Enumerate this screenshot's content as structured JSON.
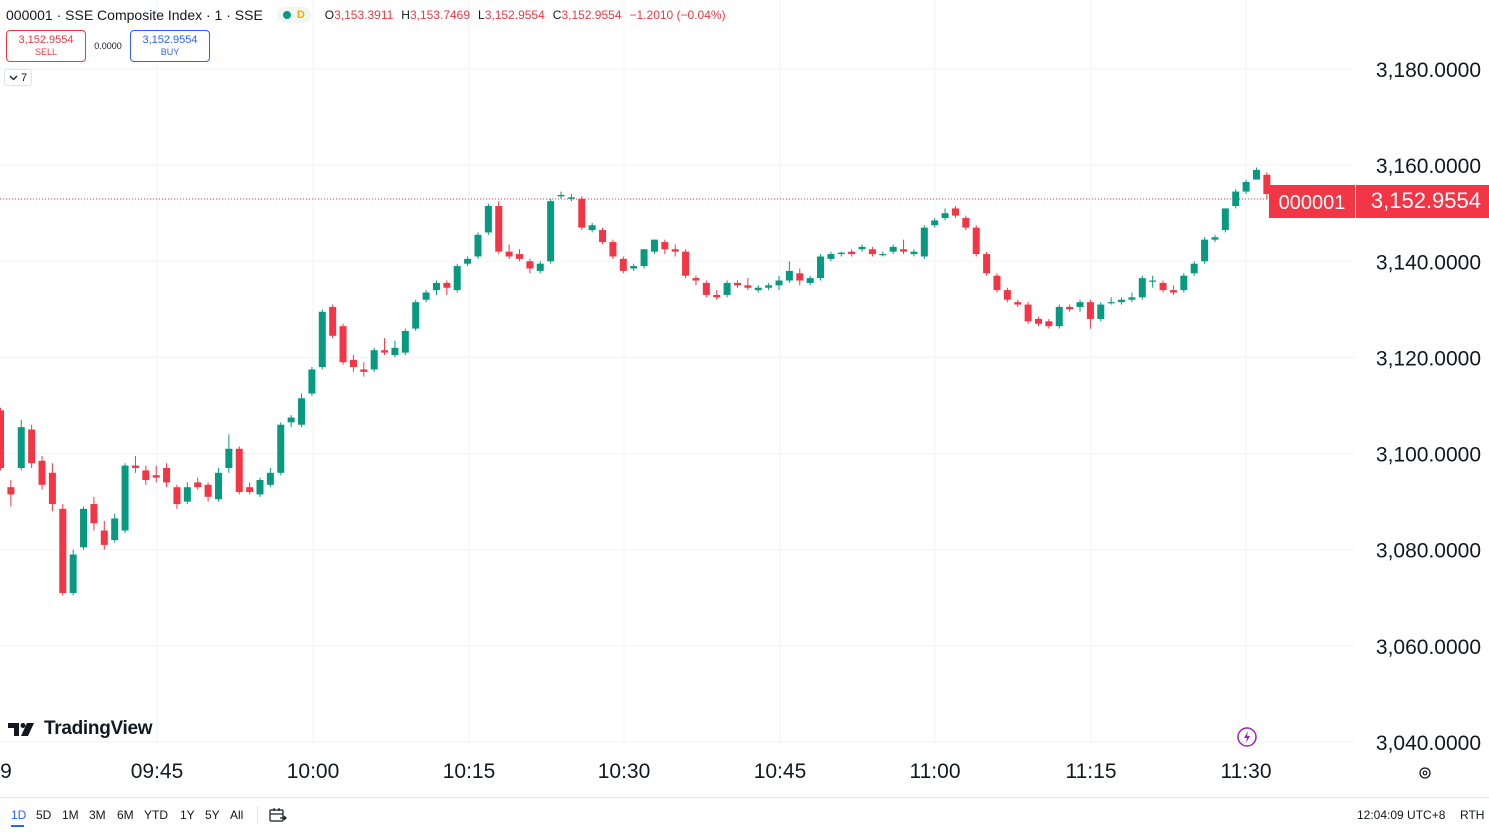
{
  "header": {
    "symbol_line": "000001 · SSE Composite Index · 1 · SSE",
    "status_letter": "D",
    "ohlc": {
      "open_label": "O",
      "open": "3,153.3911",
      "high_label": "H",
      "high": "3,153.7469",
      "low_label": "L",
      "low": "3,152.9554",
      "close_label": "C",
      "close": "3,152.9554",
      "change": "−1.2010 (−0.04%)"
    }
  },
  "trade": {
    "sell_price": "3,152.9554",
    "sell_label": "SELL",
    "spread": "0.0000",
    "buy_price": "3,152.9554",
    "buy_label": "BUY"
  },
  "collapse_count": "7",
  "logo_text": "TradingView",
  "price_tag": {
    "symbol": "000001",
    "price": "3,152.9554"
  },
  "bottom": {
    "ranges": [
      "1D",
      "5D",
      "1M",
      "3M",
      "6M",
      "YTD",
      "1Y",
      "5Y",
      "All"
    ],
    "active_range": "1D",
    "clock": "12:04:09 UTC+8",
    "session": "RTH"
  },
  "colors": {
    "up": "#089981",
    "down": "#f23645",
    "grid": "#f0f3fa",
    "accent": "#2962ff"
  },
  "chart_data": {
    "type": "candlestick",
    "y_ticks": [
      3040,
      3060,
      3080,
      3100,
      3120,
      3140,
      3160,
      3180
    ],
    "y_tick_labels": [
      "3,040.0000",
      "3,060.0000",
      "3,080.0000",
      "3,100.0000",
      "3,120.0000",
      "3,140.0000",
      "3,160.0000",
      "3,180.0000"
    ],
    "x_ticks": [
      "09:45",
      "10:00",
      "10:15",
      "10:30",
      "10:45",
      "11:00",
      "11:15",
      "11:30"
    ],
    "x_partial_label": "9",
    "last_price": 3152.9554,
    "candles": [
      {
        "o": 3109.0,
        "h": 3109.5,
        "l": 3096.5,
        "c": 3097.0
      },
      {
        "o": 3093.0,
        "h": 3094.5,
        "l": 3089.0,
        "c": 3091.5
      },
      {
        "o": 3097.0,
        "h": 3107.0,
        "l": 3096.5,
        "c": 3105.5
      },
      {
        "o": 3105.0,
        "h": 3106.0,
        "l": 3097.0,
        "c": 3098.0
      },
      {
        "o": 3098.5,
        "h": 3099.5,
        "l": 3092.5,
        "c": 3093.5
      },
      {
        "o": 3096.0,
        "h": 3098.0,
        "l": 3088.0,
        "c": 3089.5
      },
      {
        "o": 3088.5,
        "h": 3089.5,
        "l": 3070.5,
        "c": 3071.0
      },
      {
        "o": 3071.0,
        "h": 3080.0,
        "l": 3070.5,
        "c": 3079.0
      },
      {
        "o": 3080.5,
        "h": 3089.0,
        "l": 3080.0,
        "c": 3088.5
      },
      {
        "o": 3089.5,
        "h": 3091.0,
        "l": 3084.0,
        "c": 3085.5
      },
      {
        "o": 3084.0,
        "h": 3086.0,
        "l": 3080.0,
        "c": 3081.0
      },
      {
        "o": 3082.0,
        "h": 3087.5,
        "l": 3081.5,
        "c": 3086.5
      },
      {
        "o": 3084.0,
        "h": 3098.0,
        "l": 3083.5,
        "c": 3097.5
      },
      {
        "o": 3097.5,
        "h": 3099.5,
        "l": 3096.0,
        "c": 3097.0
      },
      {
        "o": 3096.5,
        "h": 3097.5,
        "l": 3093.5,
        "c": 3094.5
      },
      {
        "o": 3095.5,
        "h": 3097.5,
        "l": 3094.0,
        "c": 3095.0
      },
      {
        "o": 3097.0,
        "h": 3098.0,
        "l": 3093.0,
        "c": 3094.0
      },
      {
        "o": 3093.0,
        "h": 3093.5,
        "l": 3088.5,
        "c": 3089.5
      },
      {
        "o": 3090.0,
        "h": 3094.0,
        "l": 3089.5,
        "c": 3093.0
      },
      {
        "o": 3094.0,
        "h": 3095.0,
        "l": 3092.5,
        "c": 3093.0
      },
      {
        "o": 3093.5,
        "h": 3094.0,
        "l": 3090.0,
        "c": 3091.0
      },
      {
        "o": 3090.5,
        "h": 3097.0,
        "l": 3090.0,
        "c": 3096.0
      },
      {
        "o": 3097.0,
        "h": 3104.0,
        "l": 3096.0,
        "c": 3101.0
      },
      {
        "o": 3101.0,
        "h": 3101.5,
        "l": 3091.5,
        "c": 3092.0
      },
      {
        "o": 3093.0,
        "h": 3094.0,
        "l": 3091.5,
        "c": 3092.0
      },
      {
        "o": 3091.5,
        "h": 3095.0,
        "l": 3091.0,
        "c": 3094.5
      },
      {
        "o": 3093.5,
        "h": 3097.0,
        "l": 3093.0,
        "c": 3096.0
      },
      {
        "o": 3096.0,
        "h": 3106.5,
        "l": 3095.5,
        "c": 3106.0
      },
      {
        "o": 3106.5,
        "h": 3108.0,
        "l": 3105.5,
        "c": 3107.5
      },
      {
        "o": 3106.0,
        "h": 3112.5,
        "l": 3105.5,
        "c": 3111.5
      },
      {
        "o": 3112.5,
        "h": 3118.0,
        "l": 3112.0,
        "c": 3117.5
      },
      {
        "o": 3118.0,
        "h": 3130.0,
        "l": 3117.5,
        "c": 3129.5
      },
      {
        "o": 3130.5,
        "h": 3131.0,
        "l": 3124.0,
        "c": 3124.5
      },
      {
        "o": 3126.5,
        "h": 3127.0,
        "l": 3118.5,
        "c": 3119.0
      },
      {
        "o": 3119.5,
        "h": 3120.5,
        "l": 3117.0,
        "c": 3118.0
      },
      {
        "o": 3117.5,
        "h": 3119.0,
        "l": 3116.0,
        "c": 3117.0
      },
      {
        "o": 3117.5,
        "h": 3122.0,
        "l": 3117.0,
        "c": 3121.5
      },
      {
        "o": 3121.5,
        "h": 3124.0,
        "l": 3120.5,
        "c": 3121.0
      },
      {
        "o": 3120.5,
        "h": 3123.5,
        "l": 3120.0,
        "c": 3122.0
      },
      {
        "o": 3121.0,
        "h": 3126.0,
        "l": 3120.5,
        "c": 3125.5
      },
      {
        "o": 3126.0,
        "h": 3132.0,
        "l": 3125.5,
        "c": 3131.5
      },
      {
        "o": 3132.0,
        "h": 3134.0,
        "l": 3131.5,
        "c": 3133.5
      },
      {
        "o": 3134.0,
        "h": 3136.0,
        "l": 3133.0,
        "c": 3135.5
      },
      {
        "o": 3135.5,
        "h": 3136.0,
        "l": 3133.0,
        "c": 3134.5
      },
      {
        "o": 3134.0,
        "h": 3139.5,
        "l": 3133.5,
        "c": 3139.0
      },
      {
        "o": 3139.5,
        "h": 3141.0,
        "l": 3139.0,
        "c": 3140.5
      },
      {
        "o": 3141.0,
        "h": 3146.0,
        "l": 3140.5,
        "c": 3145.5
      },
      {
        "o": 3146.0,
        "h": 3152.0,
        "l": 3145.5,
        "c": 3151.5
      },
      {
        "o": 3151.5,
        "h": 3152.5,
        "l": 3141.5,
        "c": 3142.0
      },
      {
        "o": 3142.0,
        "h": 3143.5,
        "l": 3140.5,
        "c": 3141.0
      },
      {
        "o": 3141.5,
        "h": 3142.5,
        "l": 3140.0,
        "c": 3140.5
      },
      {
        "o": 3140.0,
        "h": 3140.5,
        "l": 3137.5,
        "c": 3138.5
      },
      {
        "o": 3138.0,
        "h": 3140.0,
        "l": 3137.5,
        "c": 3139.5
      },
      {
        "o": 3140.0,
        "h": 3153.0,
        "l": 3139.5,
        "c": 3152.5
      },
      {
        "o": 3153.5,
        "h": 3154.5,
        "l": 3153.0,
        "c": 3153.8
      },
      {
        "o": 3153.0,
        "h": 3154.0,
        "l": 3152.5,
        "c": 3153.3
      },
      {
        "o": 3153.0,
        "h": 3153.5,
        "l": 3146.5,
        "c": 3147.0
      },
      {
        "o": 3146.5,
        "h": 3148.0,
        "l": 3146.0,
        "c": 3147.5
      },
      {
        "o": 3146.5,
        "h": 3147.0,
        "l": 3143.5,
        "c": 3144.0
      },
      {
        "o": 3144.0,
        "h": 3144.5,
        "l": 3140.5,
        "c": 3141.0
      },
      {
        "o": 3140.5,
        "h": 3141.0,
        "l": 3137.5,
        "c": 3138.0
      },
      {
        "o": 3138.5,
        "h": 3139.5,
        "l": 3138.0,
        "c": 3139.0
      },
      {
        "o": 3139.0,
        "h": 3142.5,
        "l": 3138.5,
        "c": 3142.5
      },
      {
        "o": 3142.0,
        "h": 3144.5,
        "l": 3141.5,
        "c": 3144.5
      },
      {
        "o": 3144.0,
        "h": 3144.5,
        "l": 3141.5,
        "c": 3142.5
      },
      {
        "o": 3142.5,
        "h": 3143.5,
        "l": 3141.0,
        "c": 3142.0
      },
      {
        "o": 3142.0,
        "h": 3142.5,
        "l": 3136.5,
        "c": 3137.0
      },
      {
        "o": 3136.5,
        "h": 3137.0,
        "l": 3135.0,
        "c": 3136.0
      },
      {
        "o": 3135.5,
        "h": 3136.0,
        "l": 3132.5,
        "c": 3133.0
      },
      {
        "o": 3133.0,
        "h": 3134.0,
        "l": 3132.0,
        "c": 3132.5
      },
      {
        "o": 3133.0,
        "h": 3136.0,
        "l": 3132.5,
        "c": 3135.5
      },
      {
        "o": 3135.5,
        "h": 3136.0,
        "l": 3134.5,
        "c": 3135.0
      },
      {
        "o": 3135.0,
        "h": 3136.5,
        "l": 3134.0,
        "c": 3134.5
      },
      {
        "o": 3134.0,
        "h": 3135.0,
        "l": 3133.5,
        "c": 3134.5
      },
      {
        "o": 3134.5,
        "h": 3135.5,
        "l": 3134.0,
        "c": 3135.0
      },
      {
        "o": 3135.0,
        "h": 3137.0,
        "l": 3134.0,
        "c": 3136.0
      },
      {
        "o": 3136.0,
        "h": 3140.0,
        "l": 3135.5,
        "c": 3138.0
      },
      {
        "o": 3137.5,
        "h": 3138.5,
        "l": 3135.0,
        "c": 3136.0
      },
      {
        "o": 3135.5,
        "h": 3137.0,
        "l": 3135.0,
        "c": 3136.5
      },
      {
        "o": 3136.5,
        "h": 3141.5,
        "l": 3136.0,
        "c": 3141.0
      },
      {
        "o": 3140.5,
        "h": 3142.0,
        "l": 3140.0,
        "c": 3141.5
      },
      {
        "o": 3141.5,
        "h": 3142.0,
        "l": 3141.0,
        "c": 3141.8
      },
      {
        "o": 3142.0,
        "h": 3142.5,
        "l": 3141.0,
        "c": 3141.5
      },
      {
        "o": 3142.5,
        "h": 3143.5,
        "l": 3142.0,
        "c": 3143.0
      },
      {
        "o": 3142.5,
        "h": 3143.0,
        "l": 3141.0,
        "c": 3141.5
      },
      {
        "o": 3141.5,
        "h": 3142.0,
        "l": 3141.0,
        "c": 3141.5
      },
      {
        "o": 3142.0,
        "h": 3143.5,
        "l": 3141.5,
        "c": 3143.0
      },
      {
        "o": 3142.5,
        "h": 3144.5,
        "l": 3141.5,
        "c": 3142.0
      },
      {
        "o": 3141.5,
        "h": 3142.5,
        "l": 3141.0,
        "c": 3142.0
      },
      {
        "o": 3141.0,
        "h": 3147.5,
        "l": 3140.5,
        "c": 3147.0
      },
      {
        "o": 3147.5,
        "h": 3149.0,
        "l": 3147.0,
        "c": 3148.5
      },
      {
        "o": 3149.0,
        "h": 3151.0,
        "l": 3148.5,
        "c": 3150.0
      },
      {
        "o": 3151.0,
        "h": 3151.5,
        "l": 3149.0,
        "c": 3149.5
      },
      {
        "o": 3149.0,
        "h": 3149.5,
        "l": 3146.5,
        "c": 3147.0
      },
      {
        "o": 3147.0,
        "h": 3147.5,
        "l": 3141.0,
        "c": 3141.5
      },
      {
        "o": 3141.5,
        "h": 3142.0,
        "l": 3137.0,
        "c": 3137.5
      },
      {
        "o": 3137.0,
        "h": 3137.5,
        "l": 3133.5,
        "c": 3134.0
      },
      {
        "o": 3134.0,
        "h": 3134.5,
        "l": 3131.5,
        "c": 3132.0
      },
      {
        "o": 3131.5,
        "h": 3132.0,
        "l": 3130.5,
        "c": 3131.0
      },
      {
        "o": 3131.0,
        "h": 3131.5,
        "l": 3127.0,
        "c": 3127.5
      },
      {
        "o": 3128.0,
        "h": 3128.5,
        "l": 3126.5,
        "c": 3127.0
      },
      {
        "o": 3127.5,
        "h": 3128.0,
        "l": 3126.0,
        "c": 3126.5
      },
      {
        "o": 3126.5,
        "h": 3131.0,
        "l": 3126.0,
        "c": 3130.5
      },
      {
        "o": 3130.5,
        "h": 3131.0,
        "l": 3129.5,
        "c": 3130.0
      },
      {
        "o": 3130.5,
        "h": 3132.0,
        "l": 3129.5,
        "c": 3131.5
      },
      {
        "o": 3131.5,
        "h": 3132.0,
        "l": 3126.0,
        "c": 3128.0
      },
      {
        "o": 3128.0,
        "h": 3131.5,
        "l": 3127.5,
        "c": 3131.0
      },
      {
        "o": 3131.5,
        "h": 3132.5,
        "l": 3131.0,
        "c": 3131.5
      },
      {
        "o": 3131.5,
        "h": 3132.5,
        "l": 3131.0,
        "c": 3132.0
      },
      {
        "o": 3132.0,
        "h": 3133.5,
        "l": 3131.5,
        "c": 3132.5
      },
      {
        "o": 3132.5,
        "h": 3137.0,
        "l": 3132.0,
        "c": 3136.5
      },
      {
        "o": 3136.0,
        "h": 3137.0,
        "l": 3134.5,
        "c": 3136.0
      },
      {
        "o": 3135.5,
        "h": 3136.0,
        "l": 3133.5,
        "c": 3134.0
      },
      {
        "o": 3134.0,
        "h": 3135.0,
        "l": 3133.0,
        "c": 3133.5
      },
      {
        "o": 3134.0,
        "h": 3137.5,
        "l": 3133.5,
        "c": 3137.0
      },
      {
        "o": 3137.5,
        "h": 3140.0,
        "l": 3137.0,
        "c": 3139.5
      },
      {
        "o": 3140.0,
        "h": 3145.0,
        "l": 3139.5,
        "c": 3144.5
      },
      {
        "o": 3144.5,
        "h": 3145.5,
        "l": 3144.0,
        "c": 3145.0
      },
      {
        "o": 3146.5,
        "h": 3151.0,
        "l": 3146.0,
        "c": 3151.0
      },
      {
        "o": 3151.5,
        "h": 3155.0,
        "l": 3151.0,
        "c": 3154.5
      },
      {
        "o": 3154.5,
        "h": 3157.0,
        "l": 3154.0,
        "c": 3156.5
      },
      {
        "o": 3157.0,
        "h": 3159.5,
        "l": 3157.0,
        "c": 3159.0
      },
      {
        "o": 3158.0,
        "h": 3158.5,
        "l": 3153.0,
        "c": 3154.0
      },
      {
        "o": 3153.3911,
        "h": 3153.7469,
        "l": 3152.9554,
        "c": 3152.9554
      }
    ]
  }
}
